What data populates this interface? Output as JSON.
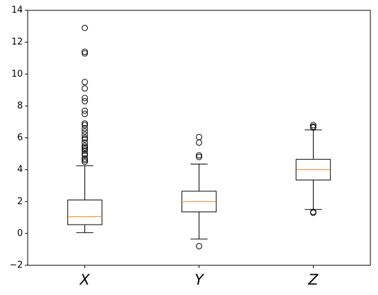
{
  "chart_data": {
    "type": "box",
    "categories": [
      "X",
      "Y",
      "Z"
    ],
    "boxes": [
      {
        "whislo": 0.05,
        "q1": 0.55,
        "med": 1.05,
        "q3": 2.1,
        "whishi": 4.25,
        "fliers": [
          12.9,
          11.4,
          11.3,
          9.5,
          9.1,
          8.5,
          8.3,
          7.7,
          7.5,
          6.9,
          6.8,
          6.6,
          6.4,
          6.2,
          6.0,
          5.9,
          5.7,
          5.5,
          5.4,
          5.3,
          5.2,
          5.0,
          4.9,
          4.7,
          4.6,
          4.5
        ]
      },
      {
        "whislo": -0.35,
        "q1": 1.35,
        "med": 2.0,
        "q3": 2.65,
        "whishi": 4.35,
        "fliers": [
          6.05,
          5.7,
          4.9,
          4.8,
          -0.8
        ]
      },
      {
        "whislo": 1.5,
        "q1": 3.35,
        "med": 4.0,
        "q3": 4.65,
        "whishi": 6.5,
        "fliers": [
          6.8,
          6.7,
          6.65,
          1.35,
          1.3
        ]
      }
    ],
    "box_color": "#000000",
    "median_color": "#ff7f0e",
    "ylim": [
      -2,
      14
    ],
    "yticks": [
      {
        "value": -2,
        "label": "−2"
      },
      0,
      2,
      4,
      6,
      8,
      10,
      12,
      14
    ]
  }
}
